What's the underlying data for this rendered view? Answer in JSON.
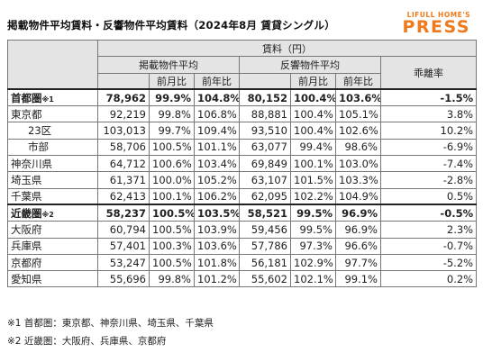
{
  "title": "掲載物件平均賃料・反響物件平均賃料（2024年8月 賃貸シングル）",
  "logo": {
    "top": "LIFULL HOME'S",
    "main": "PRESS"
  },
  "header": {
    "rent": "賃料（円）",
    "listed_avg": "掲載物件平均",
    "inquiry_avg": "反響物件平均",
    "mom": "前月比",
    "yoy": "前年比",
    "divergence": "乖離率"
  },
  "rows": [
    {
      "label": "首都圏",
      "mark": "※1",
      "listed": "78,962",
      "l_mom": "99.9%",
      "l_yoy": "104.8%",
      "inquiry": "80,152",
      "i_mom": "100.4%",
      "i_yoy": "103.6%",
      "div": "-1.5%"
    },
    {
      "label": "東京都",
      "listed": "92,219",
      "l_mom": "99.8%",
      "l_yoy": "106.8%",
      "inquiry": "88,881",
      "i_mom": "100.4%",
      "i_yoy": "105.1%",
      "div": "3.8%"
    },
    {
      "label": "23区",
      "listed": "103,013",
      "l_mom": "99.7%",
      "l_yoy": "109.4%",
      "inquiry": "93,510",
      "i_mom": "100.4%",
      "i_yoy": "102.6%",
      "div": "10.2%"
    },
    {
      "label": "市部",
      "listed": "58,706",
      "l_mom": "100.5%",
      "l_yoy": "101.1%",
      "inquiry": "63,077",
      "i_mom": "99.4%",
      "i_yoy": "98.6%",
      "div": "-6.9%"
    },
    {
      "label": "神奈川県",
      "listed": "64,712",
      "l_mom": "100.6%",
      "l_yoy": "103.4%",
      "inquiry": "69,849",
      "i_mom": "100.1%",
      "i_yoy": "103.0%",
      "div": "-7.4%"
    },
    {
      "label": "埼玉県",
      "listed": "61,371",
      "l_mom": "100.0%",
      "l_yoy": "105.2%",
      "inquiry": "63,107",
      "i_mom": "101.5%",
      "i_yoy": "103.3%",
      "div": "-2.8%"
    },
    {
      "label": "千葉県",
      "listed": "62,413",
      "l_mom": "100.1%",
      "l_yoy": "106.2%",
      "inquiry": "62,095",
      "i_mom": "102.2%",
      "i_yoy": "104.9%",
      "div": "0.5%"
    },
    {
      "label": "近畿圏",
      "mark": "※2",
      "listed": "58,237",
      "l_mom": "100.5%",
      "l_yoy": "103.5%",
      "inquiry": "58,521",
      "i_mom": "99.5%",
      "i_yoy": "96.9%",
      "div": "-0.5%"
    },
    {
      "label": "大阪府",
      "listed": "60,794",
      "l_mom": "100.5%",
      "l_yoy": "103.9%",
      "inquiry": "59,456",
      "i_mom": "99.5%",
      "i_yoy": "96.9%",
      "div": "2.3%"
    },
    {
      "label": "兵庫県",
      "listed": "57,401",
      "l_mom": "100.3%",
      "l_yoy": "103.6%",
      "inquiry": "57,786",
      "i_mom": "97.3%",
      "i_yoy": "96.6%",
      "div": "-0.7%"
    },
    {
      "label": "京都府",
      "listed": "53,247",
      "l_mom": "100.5%",
      "l_yoy": "101.8%",
      "inquiry": "56,181",
      "i_mom": "102.9%",
      "i_yoy": "97.7%",
      "div": "-5.2%"
    },
    {
      "label": "愛知県",
      "listed": "55,696",
      "l_mom": "99.8%",
      "l_yoy": "101.2%",
      "inquiry": "55,602",
      "i_mom": "102.1%",
      "i_yoy": "99.1%",
      "div": "0.2%"
    }
  ],
  "notes": [
    "※1 首都圏：東京都、神奈川県、埼玉県、千葉県",
    "※2 近畿圏：大阪府、兵庫県、京都府"
  ]
}
